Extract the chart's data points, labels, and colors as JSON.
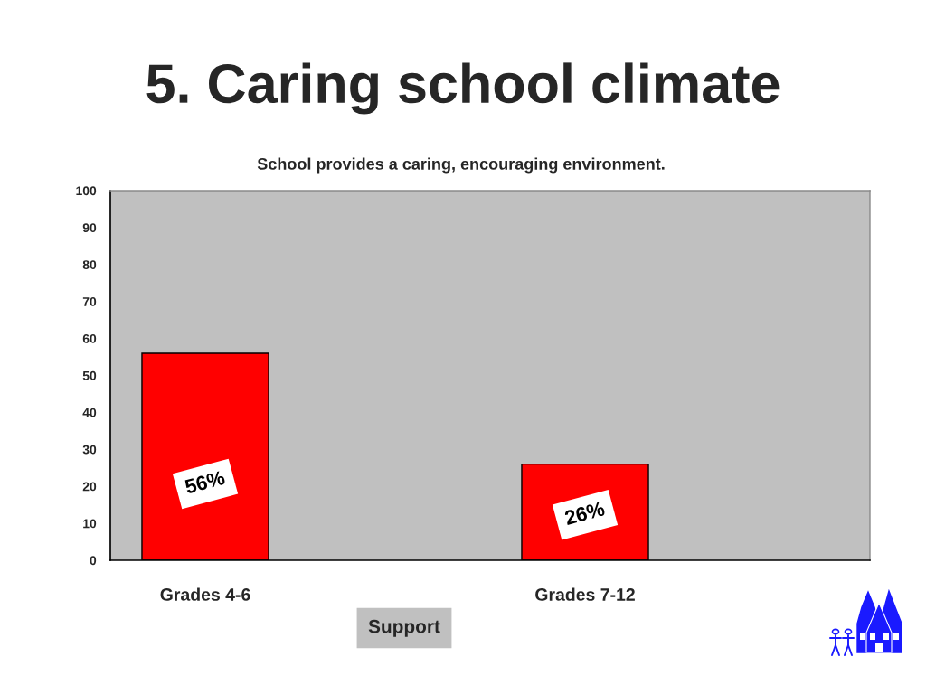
{
  "chart_data": {
    "type": "bar",
    "title": "5. Caring school climate",
    "subtitle": "School provides a caring, encouraging environment.",
    "categories": [
      "Grades 4-6",
      null,
      "Grades 7-12",
      null
    ],
    "values": [
      56,
      null,
      26,
      null
    ],
    "color": "#ff0000",
    "value_labels": [
      "56%",
      null,
      "26%",
      null
    ],
    "ylim": [
      0,
      100
    ],
    "yticks": [
      0,
      10,
      20,
      30,
      40,
      50,
      60,
      70,
      80,
      90,
      100
    ],
    "annotations": [
      "Support"
    ]
  }
}
